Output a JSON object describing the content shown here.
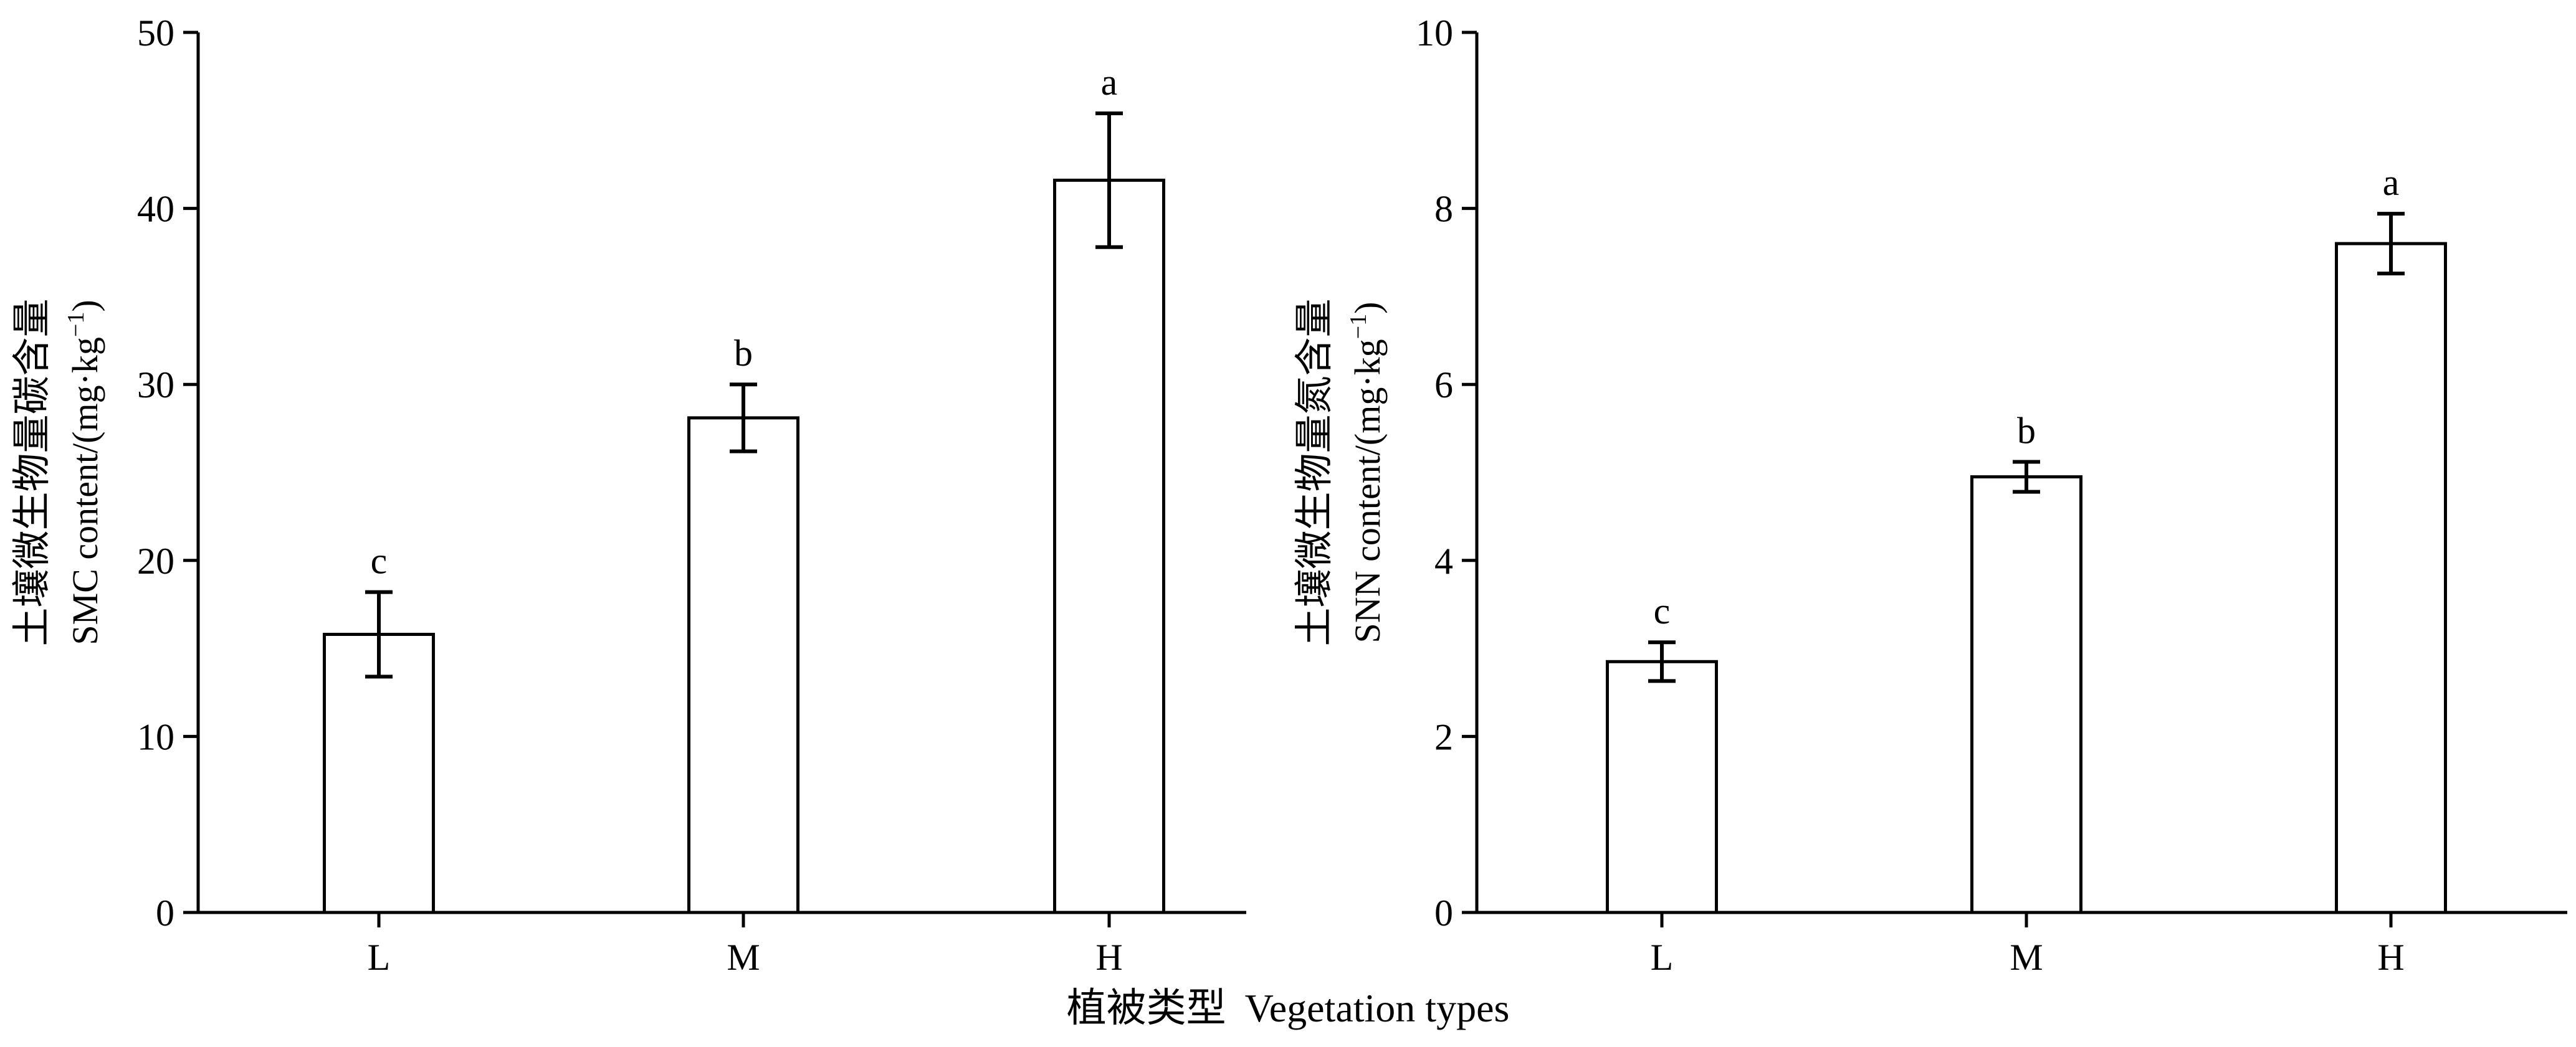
{
  "x_axis_label": {
    "zh": "植被类型",
    "en": "Vegetation types"
  },
  "chart_data": [
    {
      "type": "bar",
      "categories": [
        "L",
        "M",
        "H"
      ],
      "values": [
        15.8,
        28.1,
        41.6
      ],
      "errors": [
        2.4,
        1.9,
        3.8
      ],
      "significance_letters": [
        "c",
        "b",
        "a"
      ],
      "ylabel_zh": "土壤微生物量碳含量",
      "ylabel_en": "SMC content/(mg·kg",
      "ylabel_unit_exp": "−1",
      "ylabel_close": ")",
      "ylim": [
        0,
        50
      ],
      "yticks": [
        0,
        10,
        20,
        30,
        40,
        50
      ],
      "grid": false
    },
    {
      "type": "bar",
      "categories": [
        "L",
        "M",
        "H"
      ],
      "values": [
        2.85,
        4.95,
        7.6
      ],
      "errors": [
        0.22,
        0.17,
        0.34
      ],
      "significance_letters": [
        "c",
        "b",
        "a"
      ],
      "ylabel_zh": "土壤微生物量氮含量",
      "ylabel_en": "SNN content/(mg·kg",
      "ylabel_unit_exp": "−1",
      "ylabel_close": ")",
      "ylim": [
        0,
        10
      ],
      "yticks": [
        0,
        2,
        4,
        6,
        8,
        10
      ],
      "grid": false
    }
  ]
}
